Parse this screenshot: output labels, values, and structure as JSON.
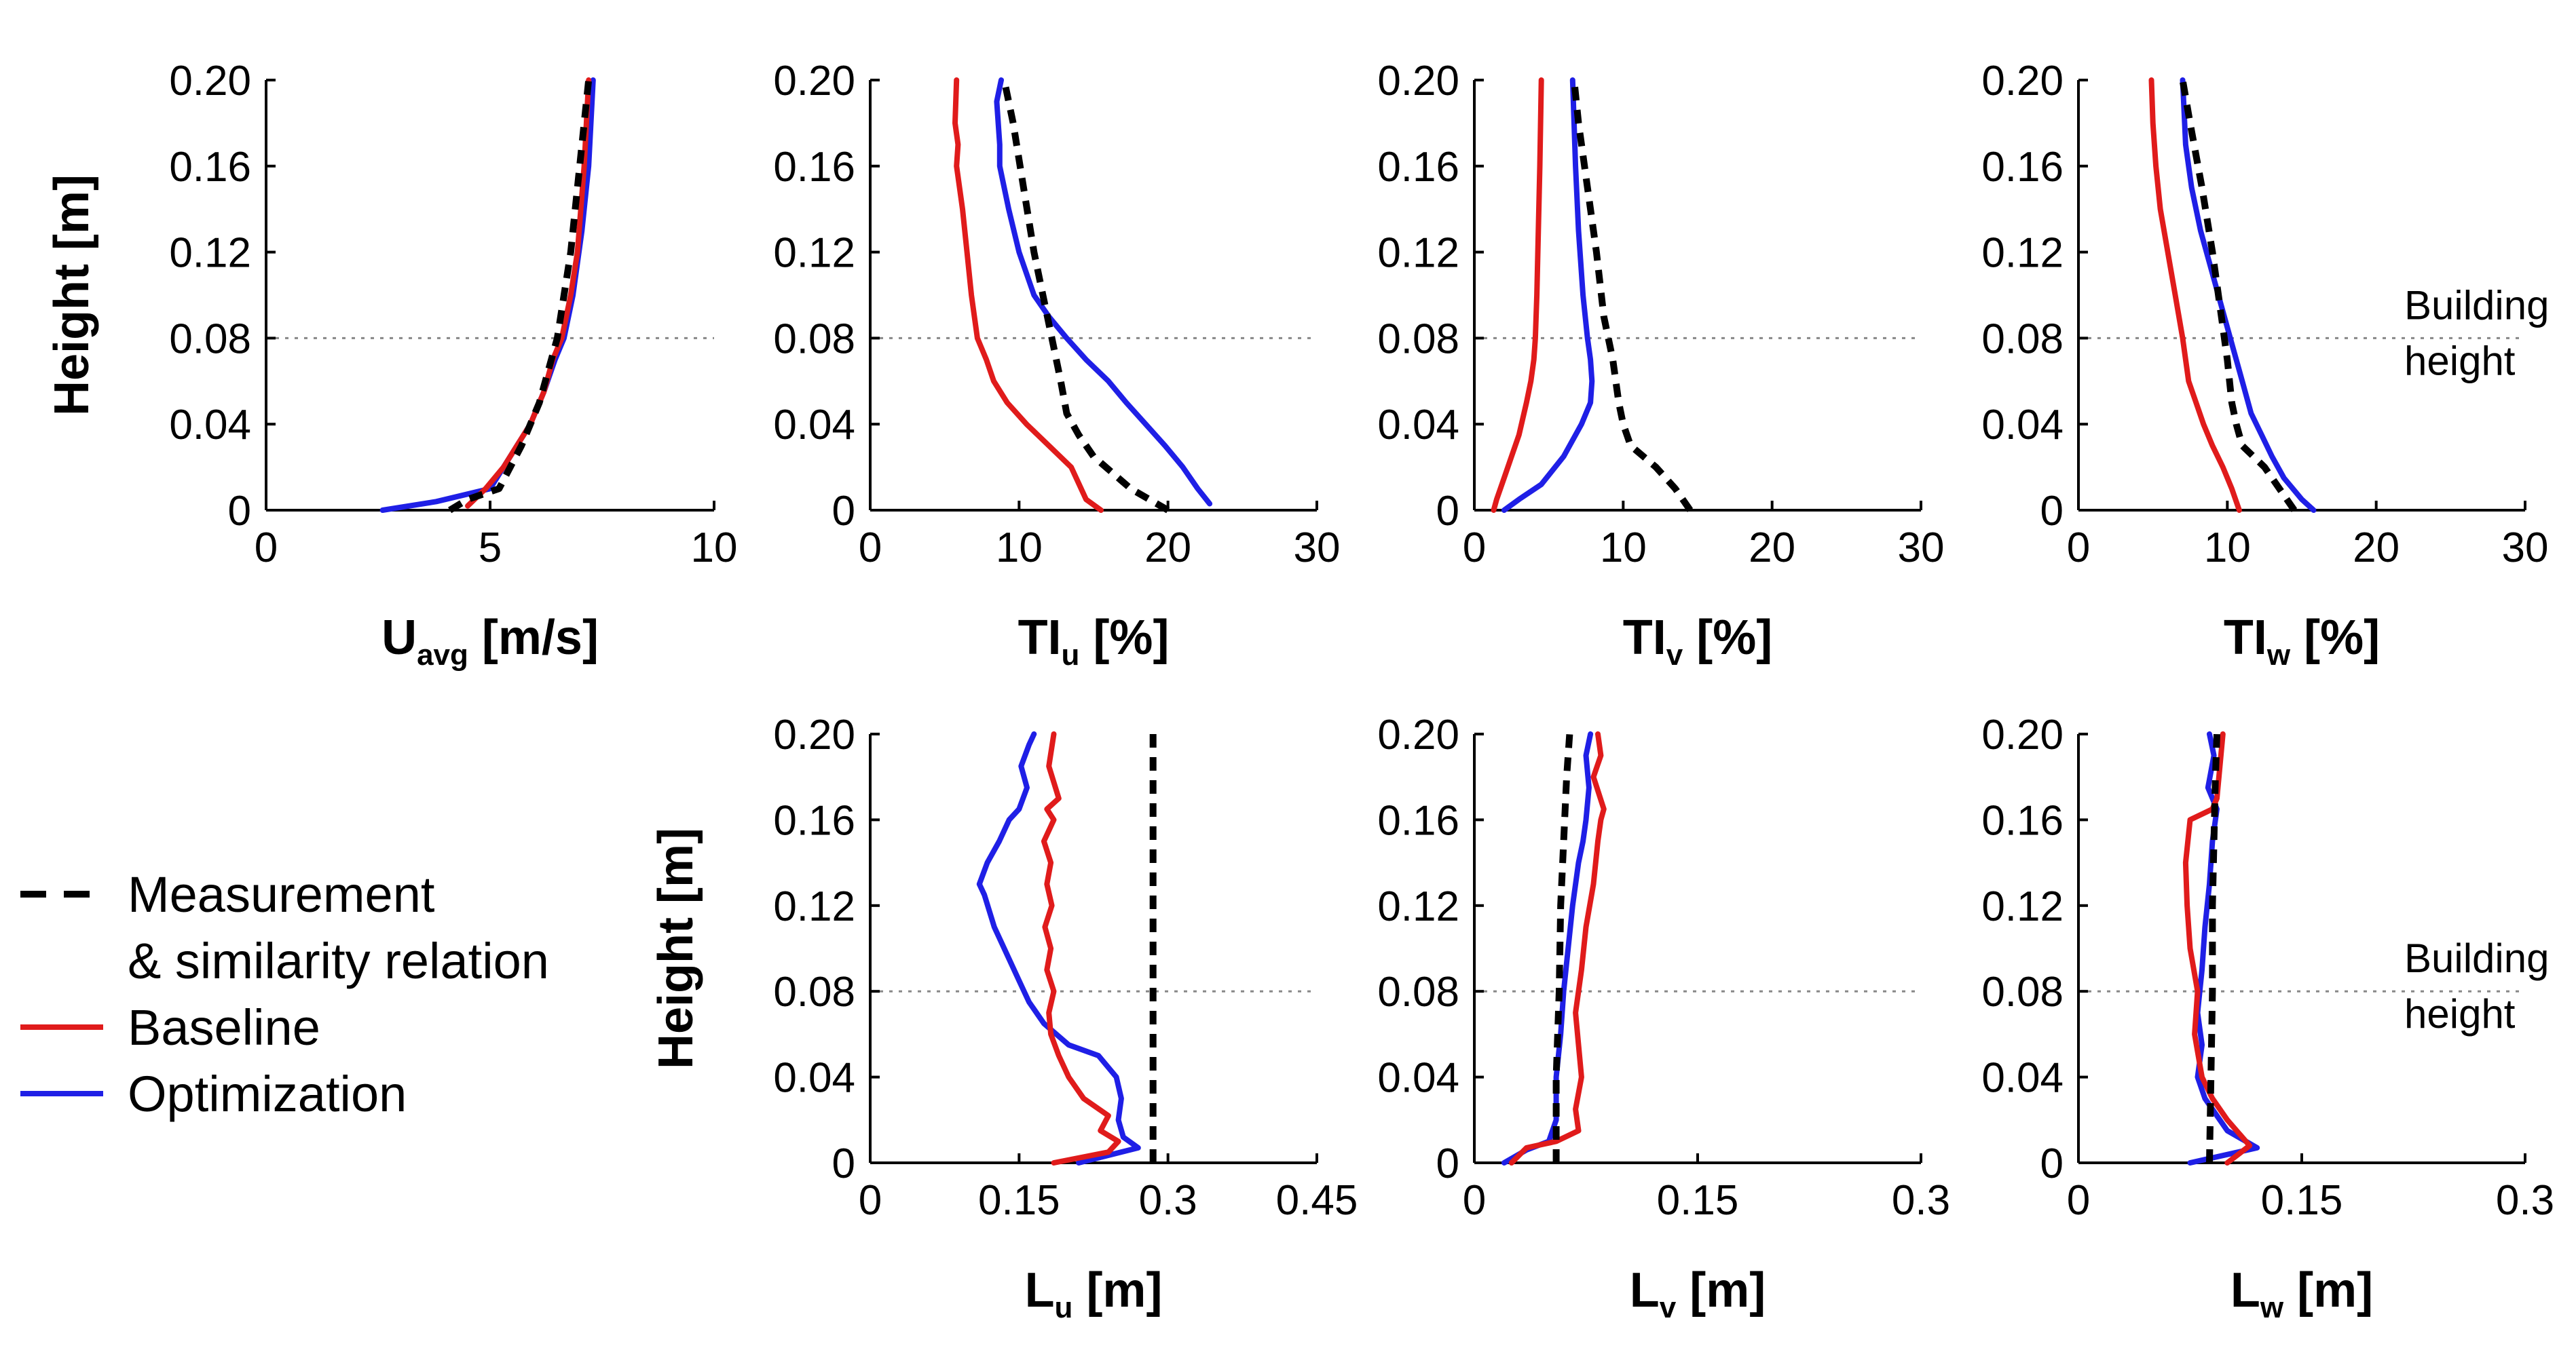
{
  "figure": {
    "building_height_value": 0.08,
    "colors": {
      "measurement": "#000000",
      "baseline": "#e01b1b",
      "optimization": "#1f1fe6",
      "building_line": "#888888"
    }
  },
  "legend": {
    "items": [
      {
        "key": "measurement",
        "label": "Measurement",
        "style": "dashed"
      },
      {
        "key": "measurement_cont",
        "label": "& similarity relation",
        "style": "none"
      },
      {
        "key": "baseline",
        "label": "Baseline",
        "style": "solid"
      },
      {
        "key": "optimization",
        "label": "Optimization",
        "style": "solid"
      }
    ]
  },
  "chart_data": [
    {
      "id": "uavg",
      "type": "line",
      "xlabel_main": "U",
      "xlabel_sub": "avg",
      "xlabel_unit": " [m/s]",
      "ylabel": "Height [m]",
      "show_ylabel": true,
      "xlim": [
        0,
        10
      ],
      "ylim": [
        0,
        0.2
      ],
      "xticks": [
        "0",
        "5",
        "10"
      ],
      "xtick_values": [
        0,
        5,
        10
      ],
      "yticks": [
        "0",
        "0.04",
        "0.08",
        "0.12",
        "0.16",
        "0.20"
      ],
      "ytick_values": [
        0,
        0.04,
        0.08,
        0.12,
        0.16,
        0.2
      ],
      "annotation": [],
      "series": [
        {
          "name": "Measurement",
          "key": "measurement",
          "x": [
            4.1,
            4.5,
            5.2,
            5.7,
            6.1,
            6.5,
            6.8,
            7.0,
            7.2
          ],
          "y": [
            0,
            0.005,
            0.01,
            0.03,
            0.05,
            0.08,
            0.12,
            0.16,
            0.2
          ]
        },
        {
          "name": "Baseline",
          "key": "baseline",
          "x": [
            4.5,
            4.9,
            5.3,
            5.6,
            5.9,
            6.2,
            6.4,
            6.6,
            6.8,
            6.95,
            7.1,
            7.2
          ],
          "y": [
            0.002,
            0.01,
            0.02,
            0.03,
            0.04,
            0.055,
            0.07,
            0.08,
            0.1,
            0.12,
            0.16,
            0.2
          ]
        },
        {
          "name": "Optimization",
          "key": "optimization",
          "x": [
            2.6,
            3.8,
            5.0,
            5.3,
            5.6,
            5.9,
            6.2,
            6.45,
            6.65,
            6.85,
            7.05,
            7.2,
            7.3
          ],
          "y": [
            0.0,
            0.004,
            0.01,
            0.02,
            0.03,
            0.04,
            0.055,
            0.07,
            0.08,
            0.1,
            0.13,
            0.16,
            0.2
          ]
        }
      ]
    },
    {
      "id": "tiu",
      "type": "line",
      "xlabel_main": "TI",
      "xlabel_sub": "u",
      "xlabel_unit": " [%]",
      "ylabel": "",
      "show_ylabel": false,
      "xlim": [
        0,
        30
      ],
      "ylim": [
        0,
        0.2
      ],
      "xticks": [
        "0",
        "10",
        "20",
        "30"
      ],
      "xtick_values": [
        0,
        10,
        20,
        30
      ],
      "yticks": [
        "0",
        "0.04",
        "0.08",
        "0.12",
        "0.16",
        "0.20"
      ],
      "ytick_values": [
        0,
        0.04,
        0.08,
        0.12,
        0.16,
        0.2
      ],
      "annotation": [],
      "series": [
        {
          "name": "Measurement",
          "key": "measurement",
          "x": [
            20,
            17.5,
            15,
            14,
            13.2,
            12.8,
            12.2,
            11.6,
            11,
            10.3,
            9.6,
            9.0
          ],
          "y": [
            0,
            0.01,
            0.025,
            0.035,
            0.045,
            0.06,
            0.08,
            0.1,
            0.12,
            0.15,
            0.18,
            0.2
          ]
        },
        {
          "name": "Baseline",
          "key": "baseline",
          "x": [
            15.5,
            14.5,
            13.5,
            12,
            10.5,
            9.2,
            8.3,
            7.8,
            7.2,
            6.8,
            6.5,
            6.2,
            6.0,
            5.8,
            5.9,
            5.7,
            5.8
          ],
          "y": [
            0,
            0.005,
            0.02,
            0.03,
            0.04,
            0.05,
            0.06,
            0.07,
            0.08,
            0.1,
            0.12,
            0.14,
            0.15,
            0.16,
            0.17,
            0.18,
            0.2
          ]
        },
        {
          "name": "Optimization",
          "key": "optimization",
          "x": [
            22.8,
            22,
            21,
            19.8,
            18.5,
            17.2,
            16,
            14.5,
            13.2,
            12,
            11,
            10,
            9.3,
            9.0,
            8.7,
            8.7,
            8.5,
            8.8
          ],
          "y": [
            0.003,
            0.01,
            0.02,
            0.03,
            0.04,
            0.05,
            0.06,
            0.07,
            0.08,
            0.09,
            0.1,
            0.12,
            0.14,
            0.15,
            0.16,
            0.17,
            0.19,
            0.2
          ]
        }
      ]
    },
    {
      "id": "tiv",
      "type": "line",
      "xlabel_main": "TI",
      "xlabel_sub": "v",
      "xlabel_unit": " [%]",
      "ylabel": "",
      "show_ylabel": false,
      "xlim": [
        0,
        30
      ],
      "ylim": [
        0,
        0.2
      ],
      "xticks": [
        "0",
        "10",
        "20",
        "30"
      ],
      "xtick_values": [
        0,
        10,
        20,
        30
      ],
      "yticks": [
        "0",
        "0.04",
        "0.08",
        "0.12",
        "0.16",
        "0.20"
      ],
      "ytick_values": [
        0,
        0.04,
        0.08,
        0.12,
        0.16,
        0.2
      ],
      "annotation": [],
      "series": [
        {
          "name": "Measurement",
          "key": "measurement",
          "x": [
            14.5,
            13.5,
            12.2,
            10.5,
            10.0,
            9.7,
            9.3,
            8.7,
            8.2,
            7.6,
            7.0,
            6.7
          ],
          "y": [
            0,
            0.01,
            0.02,
            0.03,
            0.04,
            0.05,
            0.07,
            0.09,
            0.12,
            0.15,
            0.18,
            0.2
          ]
        },
        {
          "name": "Baseline",
          "key": "baseline",
          "x": [
            1.3,
            1.5,
            2.0,
            2.5,
            3.0,
            3.5,
            3.8,
            4.0,
            4.1,
            4.2,
            4.3,
            4.4,
            4.5
          ],
          "y": [
            0,
            0.005,
            0.015,
            0.025,
            0.035,
            0.05,
            0.06,
            0.07,
            0.08,
            0.1,
            0.13,
            0.16,
            0.2
          ]
        },
        {
          "name": "Optimization",
          "key": "optimization",
          "x": [
            2.0,
            3.0,
            4.5,
            6.0,
            7.2,
            7.8,
            7.9,
            7.8,
            7.6,
            7.3,
            7.0,
            6.8,
            6.6
          ],
          "y": [
            0,
            0.005,
            0.012,
            0.025,
            0.04,
            0.05,
            0.06,
            0.07,
            0.08,
            0.1,
            0.13,
            0.16,
            0.2
          ]
        }
      ]
    },
    {
      "id": "tiw",
      "type": "line",
      "xlabel_main": "TI",
      "xlabel_sub": "w",
      "xlabel_unit": " [%]",
      "ylabel": "",
      "show_ylabel": false,
      "xlim": [
        0,
        30
      ],
      "ylim": [
        0,
        0.2
      ],
      "xticks": [
        "0",
        "10",
        "20",
        "30"
      ],
      "xtick_values": [
        0,
        10,
        20,
        30
      ],
      "yticks": [
        "0",
        "0.04",
        "0.08",
        "0.12",
        "0.16",
        "0.20"
      ],
      "ytick_values": [
        0,
        0.04,
        0.08,
        0.12,
        0.16,
        0.2
      ],
      "annotation": [
        "Building",
        "height"
      ],
      "series": [
        {
          "name": "Measurement",
          "key": "measurement",
          "x": [
            14.5,
            13.5,
            12.5,
            11.0,
            10.6,
            10.3,
            10.0,
            9.6,
            9.0,
            8.3,
            7.5,
            7.0
          ],
          "y": [
            0,
            0.01,
            0.02,
            0.03,
            0.04,
            0.05,
            0.07,
            0.09,
            0.12,
            0.15,
            0.18,
            0.2
          ]
        },
        {
          "name": "Baseline",
          "key": "baseline",
          "x": [
            10.8,
            10.3,
            9.7,
            9.0,
            8.4,
            7.9,
            7.4,
            7.0,
            6.5,
            6.0,
            5.5,
            5.2,
            5.0,
            4.9
          ],
          "y": [
            0,
            0.01,
            0.02,
            0.03,
            0.04,
            0.05,
            0.06,
            0.08,
            0.1,
            0.12,
            0.14,
            0.16,
            0.18,
            0.2
          ]
        },
        {
          "name": "Optimization",
          "key": "optimization",
          "x": [
            15.8,
            15.0,
            13.8,
            13.0,
            12.3,
            11.6,
            11.0,
            10.4,
            9.8,
            9.0,
            8.2,
            7.6,
            7.2,
            7.0
          ],
          "y": [
            0,
            0.005,
            0.015,
            0.025,
            0.035,
            0.045,
            0.06,
            0.075,
            0.09,
            0.11,
            0.13,
            0.15,
            0.17,
            0.2
          ]
        }
      ]
    },
    {
      "id": "lu",
      "type": "line",
      "xlabel_main": "L",
      "xlabel_sub": "u",
      "xlabel_unit": " [m]",
      "ylabel": "Height [m]",
      "show_ylabel": true,
      "xlim": [
        0,
        0.45
      ],
      "ylim": [
        0,
        0.2
      ],
      "xticks": [
        "0",
        "0.15",
        "0.3",
        "0.45"
      ],
      "xtick_values": [
        0,
        0.15,
        0.3,
        0.45
      ],
      "yticks": [
        "0",
        "0.04",
        "0.08",
        "0.12",
        "0.16",
        "0.20"
      ],
      "ytick_values": [
        0,
        0.04,
        0.08,
        0.12,
        0.16,
        0.2
      ],
      "annotation": [],
      "series": [
        {
          "name": "Measurement",
          "key": "measurement",
          "x": [
            0.285,
            0.285
          ],
          "y": [
            0,
            0.2
          ]
        },
        {
          "name": "Baseline",
          "key": "baseline",
          "x": [
            0.185,
            0.24,
            0.25,
            0.232,
            0.24,
            0.215,
            0.2,
            0.19,
            0.182,
            0.18,
            0.185,
            0.178,
            0.182,
            0.176,
            0.183,
            0.178,
            0.182,
            0.175,
            0.185,
            0.178,
            0.19,
            0.18,
            0.185
          ],
          "y": [
            0,
            0.005,
            0.01,
            0.015,
            0.022,
            0.03,
            0.04,
            0.05,
            0.06,
            0.07,
            0.08,
            0.09,
            0.1,
            0.11,
            0.12,
            0.13,
            0.14,
            0.15,
            0.16,
            0.165,
            0.17,
            0.185,
            0.2
          ]
        },
        {
          "name": "Optimization",
          "key": "optimization",
          "x": [
            0.21,
            0.27,
            0.255,
            0.25,
            0.253,
            0.248,
            0.23,
            0.2,
            0.175,
            0.16,
            0.15,
            0.14,
            0.125,
            0.115,
            0.11,
            0.118,
            0.13,
            0.14,
            0.15,
            0.158,
            0.152,
            0.16,
            0.165
          ],
          "y": [
            0,
            0.007,
            0.012,
            0.02,
            0.03,
            0.04,
            0.05,
            0.055,
            0.065,
            0.075,
            0.085,
            0.095,
            0.11,
            0.125,
            0.13,
            0.14,
            0.15,
            0.16,
            0.165,
            0.175,
            0.185,
            0.195,
            0.2
          ]
        }
      ]
    },
    {
      "id": "lv",
      "type": "line",
      "xlabel_main": "L",
      "xlabel_sub": "v",
      "xlabel_unit": " [m]",
      "ylabel": "",
      "show_ylabel": false,
      "xlim": [
        0,
        0.3
      ],
      "ylim": [
        0,
        0.2
      ],
      "xticks": [
        "0",
        "0.15",
        "0.3"
      ],
      "xtick_values": [
        0,
        0.15,
        0.3
      ],
      "yticks": [
        "0",
        "0.04",
        "0.08",
        "0.12",
        "0.16",
        "0.20"
      ],
      "ytick_values": [
        0,
        0.04,
        0.08,
        0.12,
        0.16,
        0.2
      ],
      "annotation": [],
      "series": [
        {
          "name": "Measurement",
          "key": "measurement",
          "x": [
            0.055,
            0.055,
            0.057,
            0.058,
            0.06,
            0.062,
            0.064
          ],
          "y": [
            0,
            0.04,
            0.08,
            0.12,
            0.15,
            0.18,
            0.2
          ]
        },
        {
          "name": "Baseline",
          "key": "baseline",
          "x": [
            0.025,
            0.035,
            0.055,
            0.07,
            0.068,
            0.072,
            0.07,
            0.068,
            0.072,
            0.075,
            0.08,
            0.083,
            0.085,
            0.087,
            0.08,
            0.085,
            0.083
          ],
          "y": [
            0,
            0.007,
            0.01,
            0.015,
            0.025,
            0.04,
            0.055,
            0.07,
            0.09,
            0.11,
            0.13,
            0.15,
            0.16,
            0.165,
            0.18,
            0.19,
            0.2
          ]
        },
        {
          "name": "Optimization",
          "key": "optimization",
          "x": [
            0.02,
            0.035,
            0.05,
            0.055,
            0.055,
            0.058,
            0.06,
            0.063,
            0.066,
            0.07,
            0.073,
            0.075,
            0.077,
            0.075,
            0.078
          ],
          "y": [
            0,
            0.006,
            0.01,
            0.02,
            0.04,
            0.06,
            0.08,
            0.1,
            0.12,
            0.14,
            0.15,
            0.16,
            0.175,
            0.19,
            0.2
          ]
        }
      ]
    },
    {
      "id": "lw",
      "type": "line",
      "xlabel_main": "L",
      "xlabel_sub": "w",
      "xlabel_unit": " [m]",
      "ylabel": "",
      "show_ylabel": false,
      "xlim": [
        0,
        0.3
      ],
      "ylim": [
        0,
        0.2
      ],
      "xticks": [
        "0",
        "0.15",
        "0.3"
      ],
      "xtick_values": [
        0,
        0.15,
        0.3
      ],
      "yticks": [
        "0",
        "0.04",
        "0.08",
        "0.12",
        "0.16",
        "0.20"
      ],
      "ytick_values": [
        0,
        0.04,
        0.08,
        0.12,
        0.16,
        0.2
      ],
      "annotation": [
        "Building",
        "height"
      ],
      "series": [
        {
          "name": "Measurement",
          "key": "measurement",
          "x": [
            0.088,
            0.089,
            0.09,
            0.09,
            0.091,
            0.092,
            0.093
          ],
          "y": [
            0,
            0.04,
            0.08,
            0.12,
            0.15,
            0.18,
            0.2
          ]
        },
        {
          "name": "Baseline",
          "key": "baseline",
          "x": [
            0.1,
            0.115,
            0.1,
            0.09,
            0.083,
            0.078,
            0.08,
            0.075,
            0.073,
            0.072,
            0.075,
            0.09,
            0.093,
            0.095,
            0.097
          ],
          "y": [
            0,
            0.008,
            0.02,
            0.03,
            0.04,
            0.06,
            0.08,
            0.1,
            0.12,
            0.14,
            0.16,
            0.165,
            0.17,
            0.185,
            0.2
          ]
        },
        {
          "name": "Optimization",
          "key": "optimization",
          "x": [
            0.075,
            0.12,
            0.1,
            0.085,
            0.08,
            0.083,
            0.08,
            0.083,
            0.085,
            0.088,
            0.09,
            0.093,
            0.087,
            0.091,
            0.088
          ],
          "y": [
            0,
            0.007,
            0.015,
            0.03,
            0.04,
            0.055,
            0.07,
            0.09,
            0.11,
            0.13,
            0.15,
            0.165,
            0.175,
            0.19,
            0.2
          ]
        }
      ]
    }
  ]
}
